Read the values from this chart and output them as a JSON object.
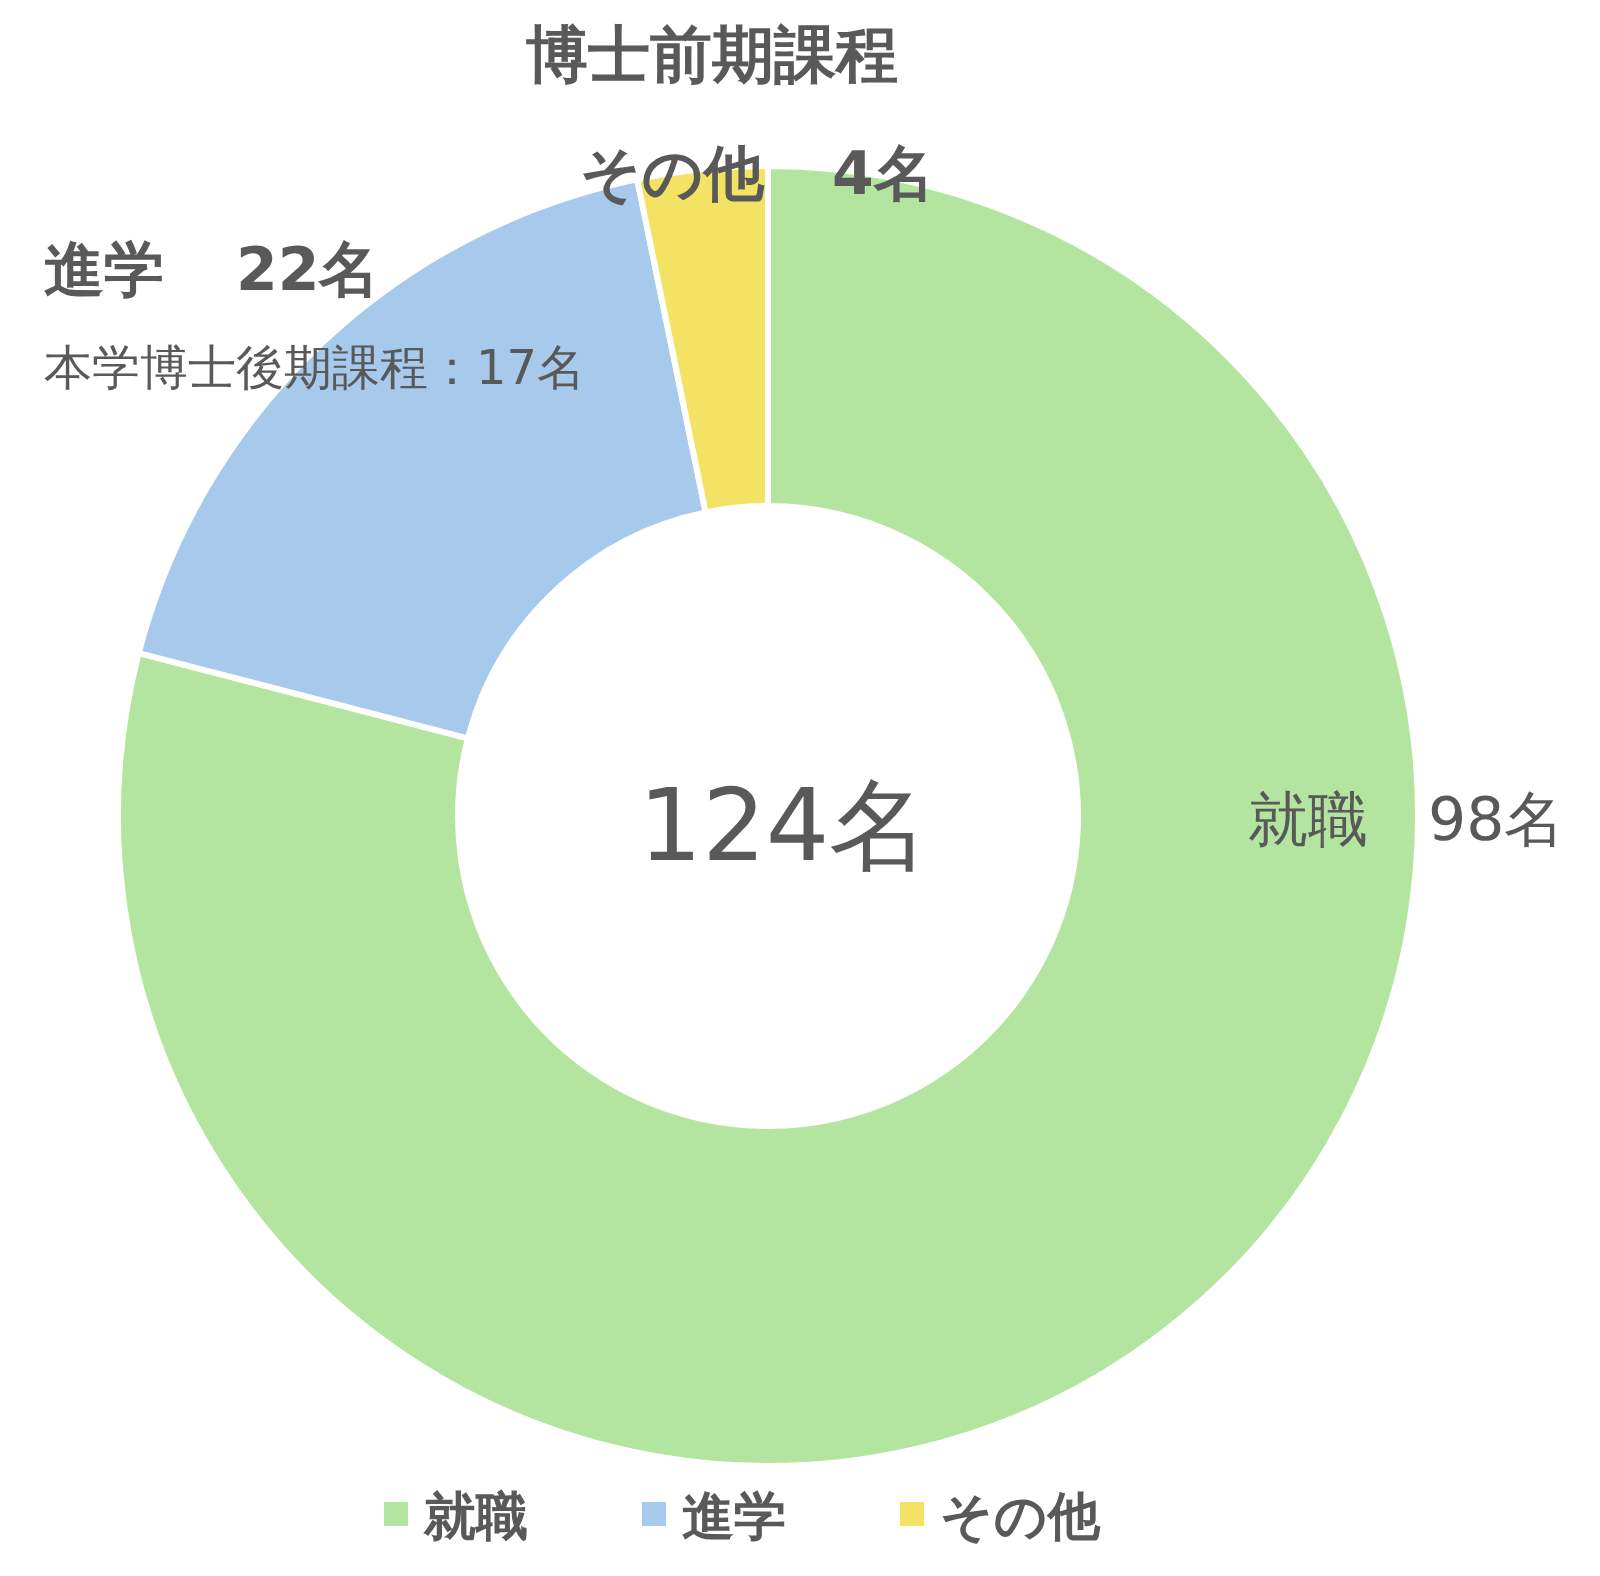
{
  "chart_data": {
    "type": "donut",
    "title": "博士前期課程",
    "categories": [
      "就職",
      "進学",
      "その他"
    ],
    "values": [
      98,
      22,
      4
    ],
    "colors": [
      "#b3e5a1",
      "#a7c9eb",
      "#f4e264"
    ],
    "value_labels": [
      "98名",
      "22名",
      "4名"
    ],
    "annotations": [
      "124名",
      "本学博士後期課程：17名"
    ],
    "legend": "bottom"
  }
}
